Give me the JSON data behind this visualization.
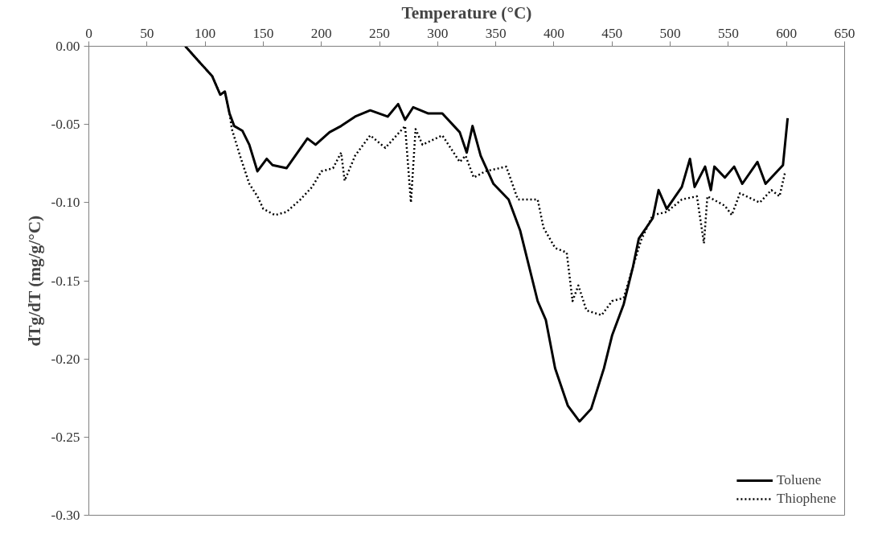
{
  "chart_data": {
    "type": "line",
    "xlabel": "Temperature (°C)",
    "ylabel": "dTg/dT (mg/g/°C)",
    "xlim": [
      0,
      650
    ],
    "xticks": [
      0,
      50,
      100,
      150,
      200,
      250,
      300,
      350,
      400,
      450,
      500,
      550,
      600,
      650
    ],
    "ylim": [
      -0.3,
      0.0
    ],
    "yticks": [
      {
        "value": 0,
        "label": "0.00"
      },
      {
        "value": -0.05,
        "label": "-0.05"
      },
      {
        "value": -0.1,
        "label": "-0.10"
      },
      {
        "value": -0.15,
        "label": "-0.15"
      },
      {
        "value": -0.2,
        "label": "-0.20"
      },
      {
        "value": -0.25,
        "label": "-0.25"
      },
      {
        "value": -0.3,
        "label": "-0.30"
      }
    ],
    "grid": false,
    "legend": "bottom right",
    "marker": "none",
    "series": [
      {
        "name": "Toluene",
        "color": "#000000",
        "line_style": "solid",
        "x": [
          83,
          95,
          106,
          113,
          117,
          121,
          125,
          132,
          138,
          145,
          153,
          158,
          170,
          188,
          195,
          207,
          217,
          229,
          242,
          257,
          266,
          272,
          279,
          292,
          304,
          319,
          325,
          330,
          337,
          348,
          361,
          371,
          386,
          393,
          401,
          412,
          422,
          432,
          443,
          450,
          460,
          468,
          473,
          485,
          490,
          497,
          510,
          517,
          521,
          530,
          535,
          538,
          547,
          555,
          562,
          575,
          582,
          597,
          601
        ],
        "values": [
          0.0,
          -0.01,
          -0.019,
          -0.031,
          -0.029,
          -0.043,
          -0.051,
          -0.054,
          -0.063,
          -0.08,
          -0.072,
          -0.076,
          -0.078,
          -0.059,
          -0.063,
          -0.055,
          -0.051,
          -0.045,
          -0.041,
          -0.045,
          -0.037,
          -0.047,
          -0.039,
          -0.043,
          -0.043,
          -0.055,
          -0.068,
          -0.051,
          -0.07,
          -0.088,
          -0.098,
          -0.118,
          -0.163,
          -0.175,
          -0.206,
          -0.23,
          -0.24,
          -0.232,
          -0.206,
          -0.185,
          -0.165,
          -0.141,
          -0.123,
          -0.11,
          -0.092,
          -0.104,
          -0.09,
          -0.072,
          -0.09,
          -0.077,
          -0.092,
          -0.077,
          -0.084,
          -0.077,
          -0.088,
          -0.074,
          -0.088,
          -0.076,
          -0.046
        ]
      },
      {
        "name": "Thiophene",
        "color": "#000000",
        "line_style": "dotted",
        "x": [
          83,
          95,
          106,
          113,
          117,
          121,
          123,
          130,
          138,
          145,
          150,
          160,
          170,
          182,
          192,
          200,
          210,
          217,
          220,
          229,
          242,
          255,
          272,
          277,
          281,
          287,
          304,
          319,
          324,
          331,
          341,
          359,
          369,
          386,
          391,
          401,
          411,
          416,
          421,
          428,
          441,
          450,
          460,
          468,
          475,
          485,
          497,
          510,
          523,
          529,
          532,
          547,
          553,
          560,
          577,
          587,
          594,
          599
        ],
        "values": [
          0.0,
          -0.01,
          -0.019,
          -0.031,
          -0.029,
          -0.043,
          -0.053,
          -0.07,
          -0.088,
          -0.096,
          -0.104,
          -0.108,
          -0.106,
          -0.098,
          -0.09,
          -0.08,
          -0.078,
          -0.068,
          -0.086,
          -0.07,
          -0.057,
          -0.065,
          -0.051,
          -0.1,
          -0.053,
          -0.063,
          -0.057,
          -0.074,
          -0.07,
          -0.084,
          -0.08,
          -0.077,
          -0.098,
          -0.098,
          -0.116,
          -0.129,
          -0.132,
          -0.163,
          -0.153,
          -0.169,
          -0.172,
          -0.163,
          -0.161,
          -0.141,
          -0.124,
          -0.108,
          -0.106,
          -0.098,
          -0.096,
          -0.126,
          -0.096,
          -0.102,
          -0.108,
          -0.094,
          -0.1,
          -0.092,
          -0.096,
          -0.08
        ]
      }
    ]
  }
}
